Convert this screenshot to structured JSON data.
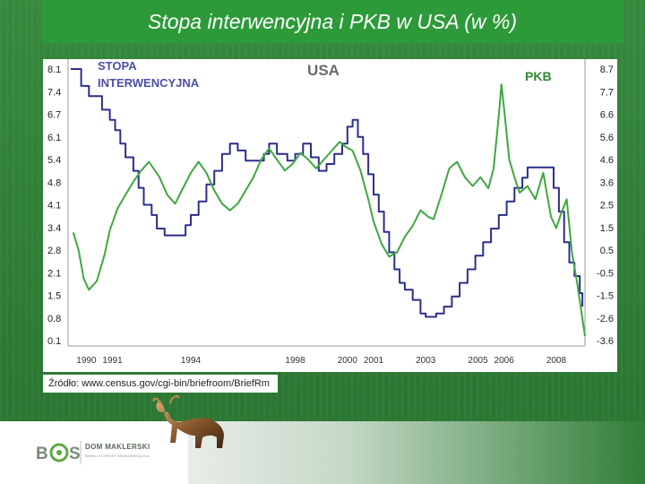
{
  "slide": {
    "title": "Stopa interwencyjna i PKB w USA (w %)",
    "source": "Źródło: www.census.gov/cgi-bin/briefroom/BriefRm"
  },
  "footer": {
    "logo_mark": "B S",
    "company": "DOM MAKLERSKI",
    "tagline": "BANKU OCHRONY ŚRODOWISKA S.A."
  },
  "colors": {
    "rate": "#2b2f8c",
    "gdp": "#3da83f",
    "accent_green": "#2d9a3a",
    "rate_label": "#4b4fa8",
    "gdp_label": "#2e8b30"
  },
  "chart_data": {
    "type": "line",
    "title": "USA",
    "series_labels": {
      "rate": "STOPA INTERWENCYJNA",
      "gdp": "PKB"
    },
    "left_axis": {
      "ticks": [
        "8.1",
        "7.4",
        "6.7",
        "6.1",
        "5.4",
        "4.8",
        "4.1",
        "3.4",
        "2.8",
        "2.1",
        "1.5",
        "0.8",
        "0.1"
      ],
      "range": [
        0.1,
        8.1
      ]
    },
    "right_axis": {
      "ticks": [
        "8.7",
        "7.7",
        "6.6",
        "5.6",
        "4.6",
        "3.6",
        "2.5",
        "1.5",
        "0.5",
        "-0.5",
        "-1.5",
        "-2.6",
        "-3.6"
      ],
      "range": [
        -3.6,
        8.7
      ]
    },
    "x_ticks": [
      {
        "label": "1990",
        "x": 1990
      },
      {
        "label": "1991",
        "x": 1991
      },
      {
        "label": "1994",
        "x": 1994
      },
      {
        "label": "1998",
        "x": 1998
      },
      {
        "label": "2000",
        "x": 2000
      },
      {
        "label": "2001",
        "x": 2001
      },
      {
        "label": "2003",
        "x": 2003
      },
      {
        "label": "2005",
        "x": 2005
      },
      {
        "label": "2006",
        "x": 2006
      },
      {
        "label": "2008",
        "x": 2008
      }
    ],
    "x_range": [
      1989.3,
      2009.1
    ],
    "series": [
      {
        "key": "rate",
        "axis": "left",
        "step": true,
        "points": [
          [
            1989.4,
            8.1
          ],
          [
            1989.8,
            7.6
          ],
          [
            1990.1,
            7.3
          ],
          [
            1990.4,
            7.3
          ],
          [
            1990.6,
            6.9
          ],
          [
            1990.9,
            6.6
          ],
          [
            1991.1,
            6.3
          ],
          [
            1991.3,
            5.9
          ],
          [
            1991.5,
            5.5
          ],
          [
            1991.8,
            5.1
          ],
          [
            1992.0,
            4.6
          ],
          [
            1992.2,
            4.1
          ],
          [
            1992.5,
            3.8
          ],
          [
            1992.7,
            3.4
          ],
          [
            1993.0,
            3.2
          ],
          [
            1993.5,
            3.2
          ],
          [
            1993.8,
            3.5
          ],
          [
            1994.0,
            3.8
          ],
          [
            1994.3,
            4.2
          ],
          [
            1994.6,
            4.7
          ],
          [
            1994.9,
            5.1
          ],
          [
            1995.2,
            5.6
          ],
          [
            1995.5,
            5.9
          ],
          [
            1995.8,
            5.7
          ],
          [
            1996.1,
            5.4
          ],
          [
            1996.5,
            5.4
          ],
          [
            1996.8,
            5.6
          ],
          [
            1997.0,
            5.9
          ],
          [
            1997.3,
            5.6
          ],
          [
            1997.7,
            5.4
          ],
          [
            1998.0,
            5.6
          ],
          [
            1998.3,
            5.9
          ],
          [
            1998.6,
            5.5
          ],
          [
            1998.9,
            5.1
          ],
          [
            1999.2,
            5.3
          ],
          [
            1999.5,
            5.6
          ],
          [
            1999.8,
            5.9
          ],
          [
            2000.0,
            6.4
          ],
          [
            2000.2,
            6.6
          ],
          [
            2000.4,
            6.1
          ],
          [
            2000.6,
            5.6
          ],
          [
            2000.8,
            5.0
          ],
          [
            2001.0,
            4.4
          ],
          [
            2001.2,
            3.9
          ],
          [
            2001.4,
            3.3
          ],
          [
            2001.6,
            2.7
          ],
          [
            2001.8,
            2.2
          ],
          [
            2002.0,
            1.8
          ],
          [
            2002.2,
            1.6
          ],
          [
            2002.5,
            1.3
          ],
          [
            2002.8,
            0.9
          ],
          [
            2003.0,
            0.8
          ],
          [
            2003.4,
            0.9
          ],
          [
            2003.7,
            1.1
          ],
          [
            2004.0,
            1.4
          ],
          [
            2004.3,
            1.8
          ],
          [
            2004.6,
            2.2
          ],
          [
            2004.9,
            2.6
          ],
          [
            2005.2,
            3.0
          ],
          [
            2005.5,
            3.4
          ],
          [
            2005.8,
            3.8
          ],
          [
            2006.1,
            4.2
          ],
          [
            2006.4,
            4.6
          ],
          [
            2006.7,
            4.9
          ],
          [
            2006.9,
            5.2
          ],
          [
            2007.2,
            5.2
          ],
          [
            2007.5,
            5.2
          ],
          [
            2007.7,
            5.2
          ],
          [
            2007.9,
            4.6
          ],
          [
            2008.1,
            3.9
          ],
          [
            2008.3,
            3.0
          ],
          [
            2008.5,
            2.4
          ],
          [
            2008.7,
            2.0
          ],
          [
            2008.9,
            1.5
          ],
          [
            2009.0,
            1.1
          ]
        ]
      },
      {
        "key": "gdp",
        "axis": "right",
        "step": false,
        "points": [
          [
            1989.5,
            1.3
          ],
          [
            1989.7,
            0.5
          ],
          [
            1989.9,
            -0.8
          ],
          [
            1990.1,
            -1.3
          ],
          [
            1990.4,
            -0.9
          ],
          [
            1990.7,
            0.3
          ],
          [
            1990.9,
            1.4
          ],
          [
            1991.2,
            2.4
          ],
          [
            1991.5,
            3.0
          ],
          [
            1991.8,
            3.6
          ],
          [
            1992.1,
            4.1
          ],
          [
            1992.4,
            4.5
          ],
          [
            1992.8,
            3.8
          ],
          [
            1993.1,
            3.0
          ],
          [
            1993.4,
            2.6
          ],
          [
            1993.7,
            3.3
          ],
          [
            1994.0,
            4.0
          ],
          [
            1994.3,
            4.5
          ],
          [
            1994.6,
            4.0
          ],
          [
            1994.9,
            3.2
          ],
          [
            1995.2,
            2.6
          ],
          [
            1995.5,
            2.3
          ],
          [
            1995.8,
            2.6
          ],
          [
            1996.1,
            3.2
          ],
          [
            1996.4,
            3.8
          ],
          [
            1996.7,
            4.6
          ],
          [
            1997.0,
            5.1
          ],
          [
            1997.3,
            4.6
          ],
          [
            1997.6,
            4.1
          ],
          [
            1997.9,
            4.4
          ],
          [
            1998.2,
            4.9
          ],
          [
            1998.5,
            4.6
          ],
          [
            1998.8,
            4.2
          ],
          [
            1999.1,
            4.6
          ],
          [
            1999.4,
            5.0
          ],
          [
            1999.7,
            5.4
          ],
          [
            1999.9,
            5.2
          ],
          [
            2000.2,
            5.0
          ],
          [
            2000.5,
            4.1
          ],
          [
            2000.8,
            2.8
          ],
          [
            2001.0,
            1.8
          ],
          [
            2001.3,
            0.8
          ],
          [
            2001.6,
            0.2
          ],
          [
            2001.9,
            0.4
          ],
          [
            2002.2,
            1.1
          ],
          [
            2002.5,
            1.6
          ],
          [
            2002.8,
            2.3
          ],
          [
            2003.1,
            2.0
          ],
          [
            2003.3,
            1.9
          ],
          [
            2003.6,
            3.0
          ],
          [
            2003.9,
            4.2
          ],
          [
            2004.2,
            4.5
          ],
          [
            2004.5,
            3.8
          ],
          [
            2004.8,
            3.4
          ],
          [
            2005.1,
            3.8
          ],
          [
            2005.4,
            3.3
          ],
          [
            2005.6,
            4.2
          ],
          [
            2005.8,
            6.6
          ],
          [
            2005.9,
            8.0
          ],
          [
            2006.0,
            6.9
          ],
          [
            2006.2,
            4.6
          ],
          [
            2006.4,
            3.8
          ],
          [
            2006.6,
            3.1
          ],
          [
            2006.9,
            3.4
          ],
          [
            2007.2,
            2.8
          ],
          [
            2007.5,
            4.0
          ],
          [
            2007.8,
            2.0
          ],
          [
            2008.0,
            1.5
          ],
          [
            2008.2,
            2.2
          ],
          [
            2008.4,
            2.8
          ],
          [
            2008.6,
            0.4
          ],
          [
            2008.8,
            -1.0
          ],
          [
            2009.0,
            -2.6
          ],
          [
            2009.1,
            -3.4
          ]
        ]
      }
    ]
  }
}
